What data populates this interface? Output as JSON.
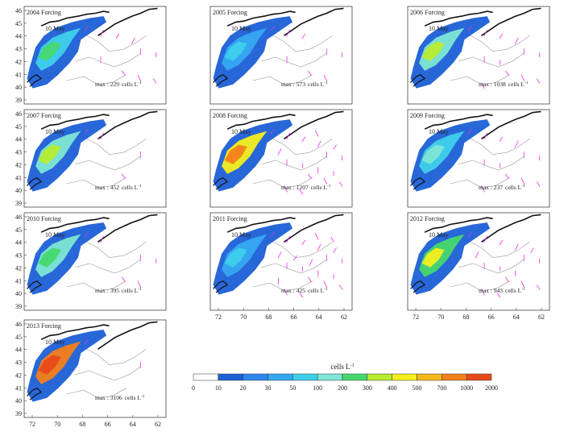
{
  "panels": [
    {
      "title": "2004 Forcing",
      "date": "10 May",
      "max": "229"
    },
    {
      "title": "2005 Forcing",
      "date": "10 May",
      "max": "573"
    },
    {
      "title": "2006 Forcing",
      "date": "10 May",
      "max": "1038"
    },
    {
      "title": "2007 Forcing",
      "date": "10 May",
      "max": "452"
    },
    {
      "title": "2008 Forcing",
      "date": "10 May",
      "max": "1207"
    },
    {
      "title": "2009 Forcing",
      "date": "10 May",
      "max": "237"
    },
    {
      "title": "2010 Forcing",
      "date": "10 May",
      "max": "395"
    },
    {
      "title": "2011 Forcing",
      "date": "10 May",
      "max": "425"
    },
    {
      "title": "2012 Forcing",
      "date": "10 May",
      "max": "943"
    },
    {
      "title": "2013 Forcing",
      "date": "10 May",
      "max": "3106"
    }
  ],
  "max_prefix": "max : ",
  "max_units": "cells L",
  "max_units_exp": "-1",
  "lon_ticks": [
    "72",
    "70",
    "68",
    "66",
    "64",
    "62"
  ],
  "lat_ticks": [
    "46",
    "45",
    "44",
    "43",
    "42",
    "41",
    "40",
    "39"
  ],
  "colorbar": {
    "title": "cells L",
    "title_exp": "-1",
    "ticks": [
      "0",
      "10",
      "20",
      "30",
      "50",
      "100",
      "200",
      "300",
      "400",
      "500",
      "700",
      "1000",
      "2000"
    ],
    "colors": [
      "#ffffff",
      "#1c5fd6",
      "#2f86ee",
      "#36a8f2",
      "#3fd0ec",
      "#7ee6d4",
      "#46d86e",
      "#b8ec2e",
      "#f4ef1e",
      "#f7b81e",
      "#f3801a",
      "#e84a1a"
    ]
  },
  "colors": {
    "coast": "#111111",
    "bathymetry": "#9a9a9a",
    "vectors": "#e62ee6",
    "frame": "#444444"
  }
}
